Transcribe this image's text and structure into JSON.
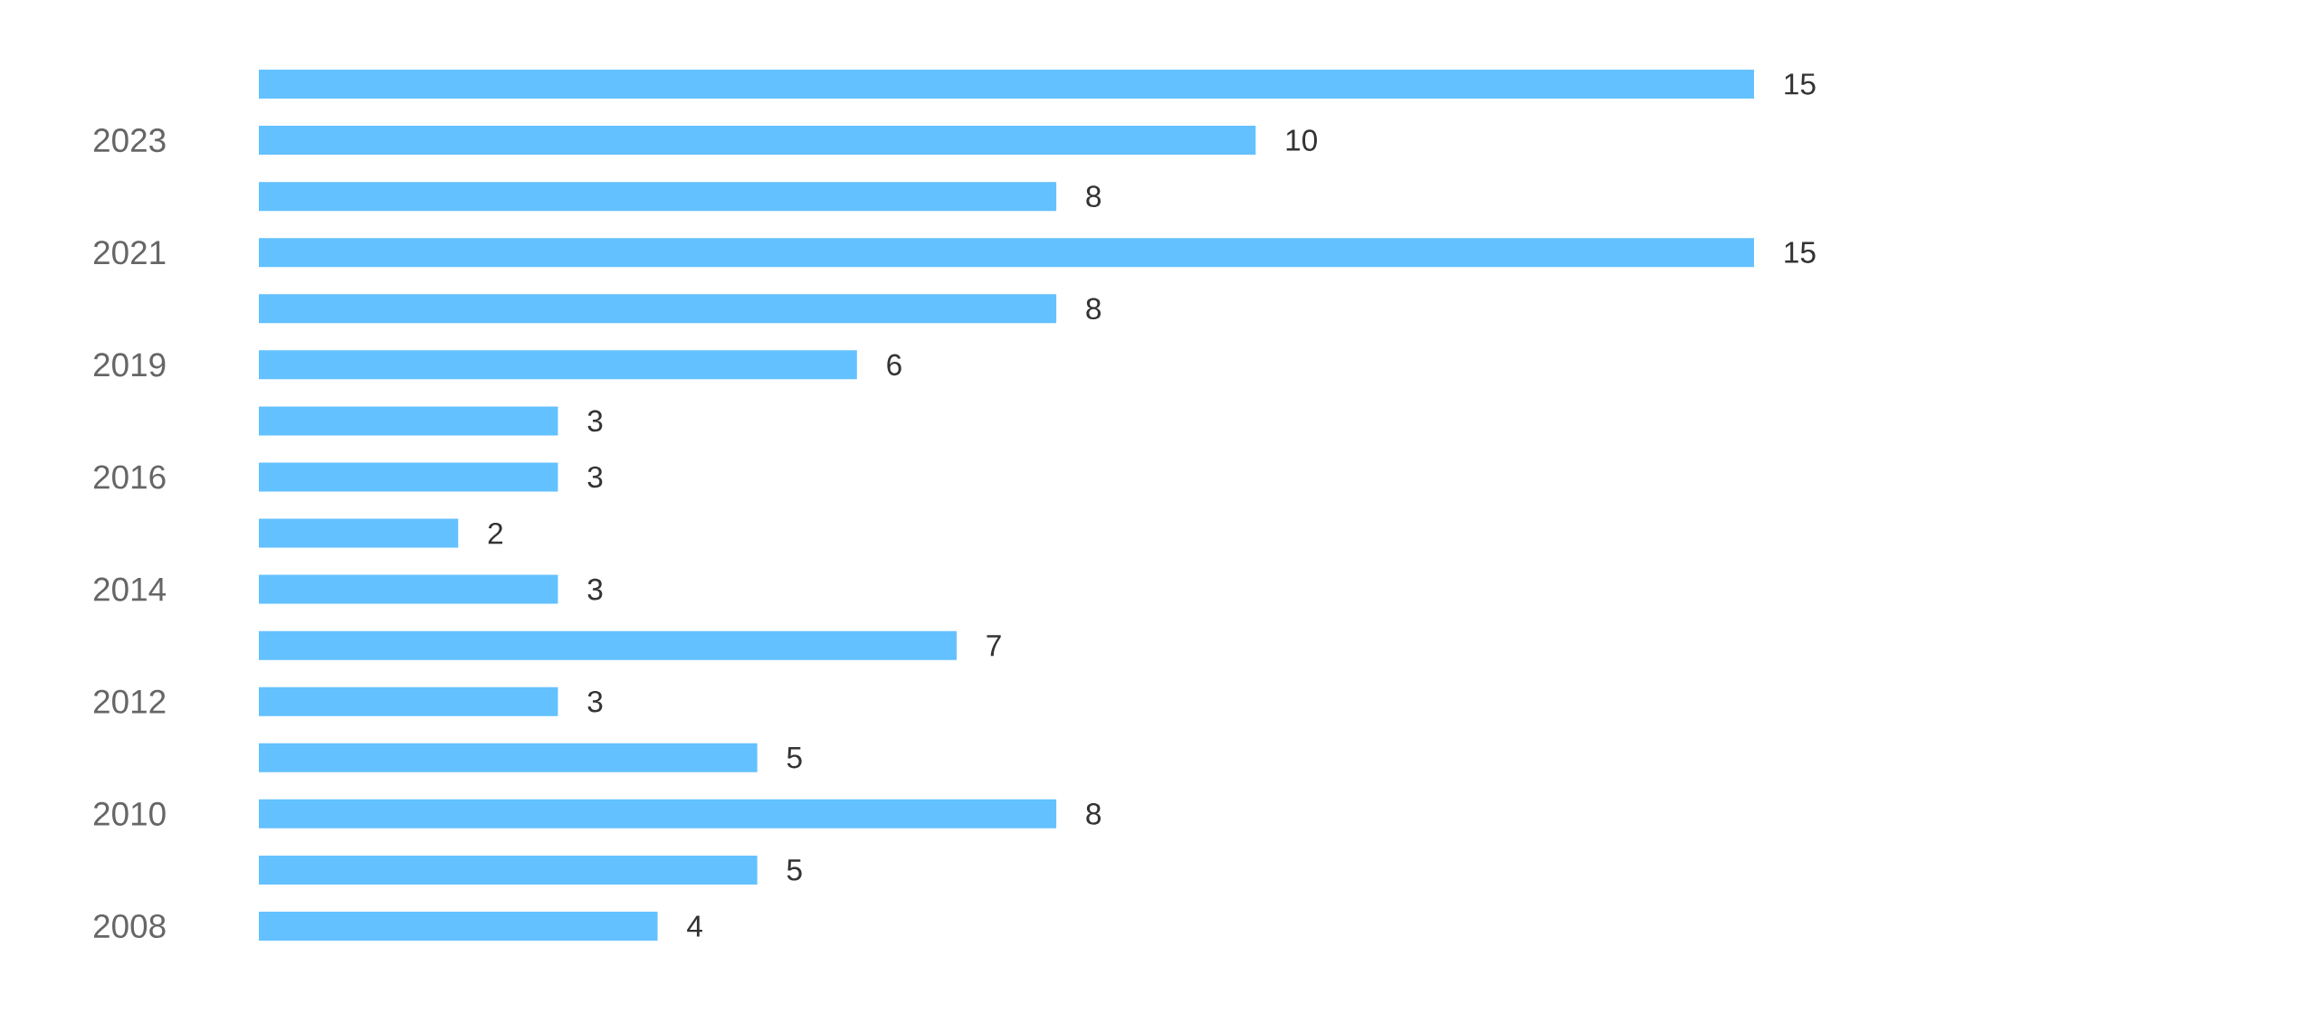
{
  "chart_data": {
    "type": "bar",
    "orientation": "horizontal",
    "data_labels": true,
    "color": "#63c1ff",
    "categories": [
      null,
      "2023",
      null,
      "2021",
      null,
      "2019",
      null,
      "2016",
      null,
      "2014",
      null,
      "2012",
      null,
      "2010",
      null,
      "2008"
    ],
    "values": [
      15,
      10,
      8,
      15,
      8,
      6,
      3,
      3,
      2,
      3,
      7,
      3,
      5,
      8,
      5,
      4
    ]
  }
}
